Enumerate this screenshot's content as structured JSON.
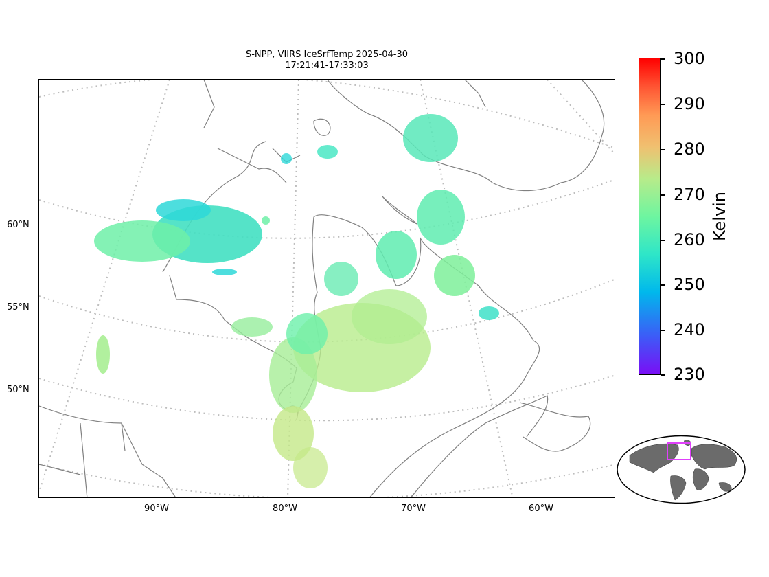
{
  "title": {
    "line1": "S-NPP, VIIRS IceSrfTemp 2025-04-30",
    "line2": "17:21:41-17:33:03"
  },
  "map": {
    "region": "Hudson Bay / Northern Quebec, Canada",
    "lat_labels": [
      "60°N",
      "55°N",
      "50°N"
    ],
    "lon_labels": [
      "90°W",
      "80°W",
      "70°W",
      "60°W"
    ],
    "gridlines": "dotted",
    "coastline_color": "#808080",
    "grid_color": "#bdbdbd"
  },
  "colorbar": {
    "label": "Kelvin",
    "ticks": [
      "300",
      "290",
      "280",
      "270",
      "260",
      "250",
      "240",
      "230"
    ],
    "min": 230,
    "max": 300,
    "colormap": "rainbow"
  },
  "inset": {
    "description_icon": "world-locator-icon",
    "highlight_color": "#e040fb",
    "land_color": "#6b6b6b"
  }
}
